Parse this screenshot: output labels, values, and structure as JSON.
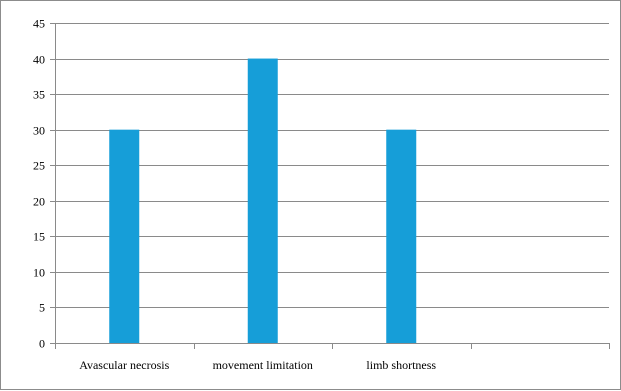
{
  "chart_data": {
    "type": "bar",
    "categories": [
      "Avascular necrosis",
      "movement limitation",
      "limb shortness",
      ""
    ],
    "series": [
      {
        "values": [
          30,
          40,
          30,
          null
        ],
        "color": "#169ED8"
      }
    ],
    "ylim": [
      0,
      45
    ],
    "yticks": [
      "0",
      "5",
      "10",
      "15",
      "20",
      "25",
      "30",
      "35",
      "40",
      "45"
    ],
    "title": "",
    "xlabel": "",
    "ylabel": "",
    "grid": true,
    "legend": "none",
    "gridline_color": "#8a8a8a",
    "axis_color": "#8a8a8a"
  }
}
